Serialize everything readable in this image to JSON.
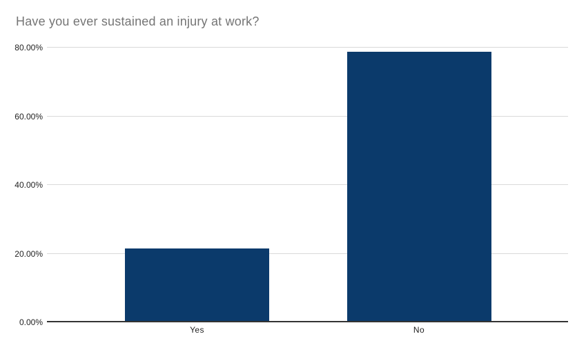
{
  "chart_data": {
    "type": "bar",
    "title": "Have you ever sustained an injury at work?",
    "categories": [
      "Yes",
      "No"
    ],
    "values": [
      21.4,
      78.6
    ],
    "xlabel": "",
    "ylabel": "",
    "ylim": [
      0,
      80
    ],
    "y_ticks": [
      0,
      20,
      40,
      60,
      80
    ],
    "y_tick_labels": [
      "0.00%",
      "20.00%",
      "40.00%",
      "60.00%",
      "80.00%"
    ],
    "grid": true,
    "legend": "none",
    "colors": {
      "bar": "#0b3a6b",
      "gridline": "#d9d9d9",
      "axis": "#333333",
      "title": "#757575",
      "tick_label": "#222222",
      "background": "#ffffff"
    }
  }
}
